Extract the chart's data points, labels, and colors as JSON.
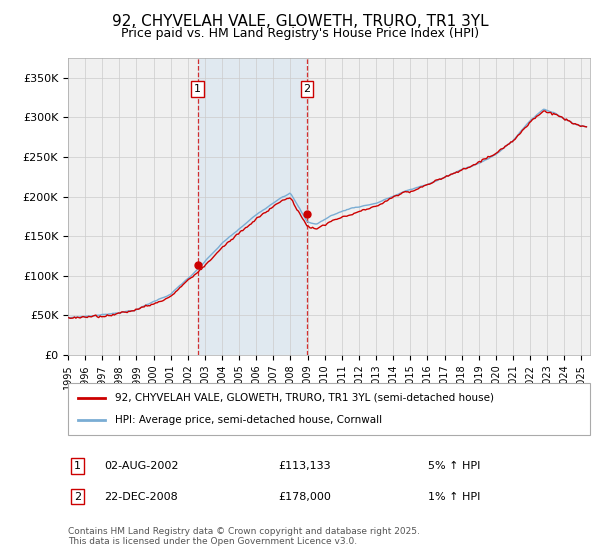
{
  "title": "92, CHYVELAH VALE, GLOWETH, TRURO, TR1 3YL",
  "subtitle": "Price paid vs. HM Land Registry's House Price Index (HPI)",
  "ylabel_ticks": [
    "£0",
    "£50K",
    "£100K",
    "£150K",
    "£200K",
    "£250K",
    "£300K",
    "£350K"
  ],
  "ytick_values": [
    0,
    50000,
    100000,
    150000,
    200000,
    250000,
    300000,
    350000
  ],
  "ylim": [
    0,
    375000
  ],
  "xlim_start": 1995.0,
  "xlim_end": 2025.5,
  "sale1_date": 2002.58,
  "sale1_price": 113133,
  "sale2_date": 2008.97,
  "sale2_price": 178000,
  "legend_line1": "92, CHYVELAH VALE, GLOWETH, TRURO, TR1 3YL (semi-detached house)",
  "legend_line2": "HPI: Average price, semi-detached house, Cornwall",
  "footer": "Contains HM Land Registry data © Crown copyright and database right 2025.\nThis data is licensed under the Open Government Licence v3.0.",
  "price_color": "#cc0000",
  "hpi_color": "#7aadd4",
  "background_color": "#ffffff",
  "plot_bg_color": "#f0f0f0",
  "shade_color": "#c8dff0",
  "grid_color": "#cccccc",
  "ann1_date": "02-AUG-2002",
  "ann1_price": "£113,133",
  "ann1_hpi": "5% ↑ HPI",
  "ann2_date": "22-DEC-2008",
  "ann2_price": "£178,000",
  "ann2_hpi": "1% ↑ HPI"
}
